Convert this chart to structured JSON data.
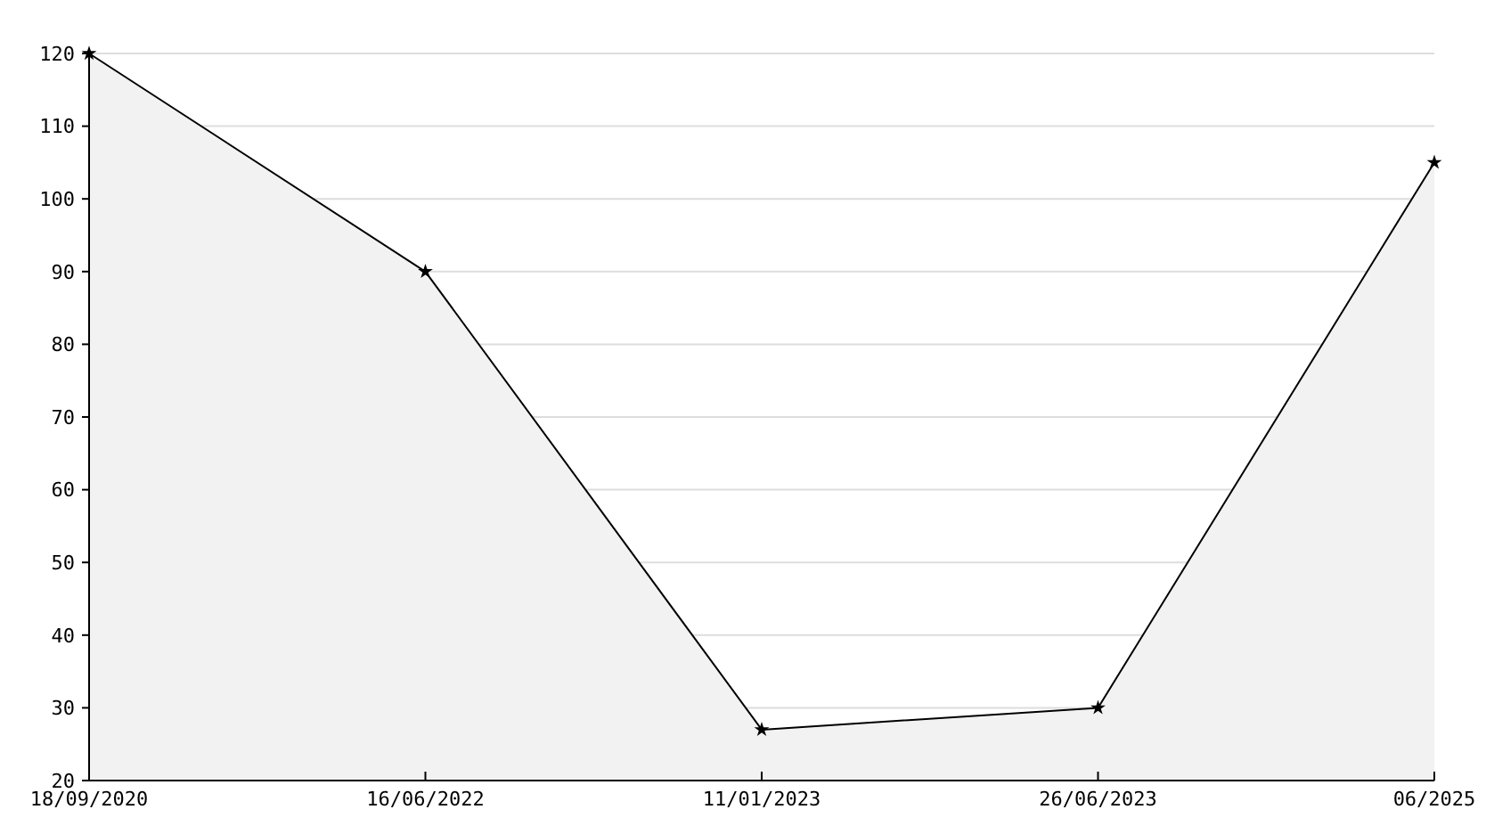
{
  "chart_data": {
    "type": "area",
    "categories": [
      "18/09/2020",
      "16/06/2022",
      "11/01/2023",
      "26/06/2023",
      "06/2025"
    ],
    "series": [
      {
        "color": "#f2f2f2",
        "values": [
          120,
          90,
          27,
          30,
          105
        ]
      }
    ],
    "ylim": [
      20,
      120
    ],
    "yticks": [
      20,
      30,
      40,
      50,
      60,
      70,
      80,
      90,
      100,
      110,
      120
    ],
    "grid": "y",
    "marker": "star",
    "line_style": "solid"
  }
}
